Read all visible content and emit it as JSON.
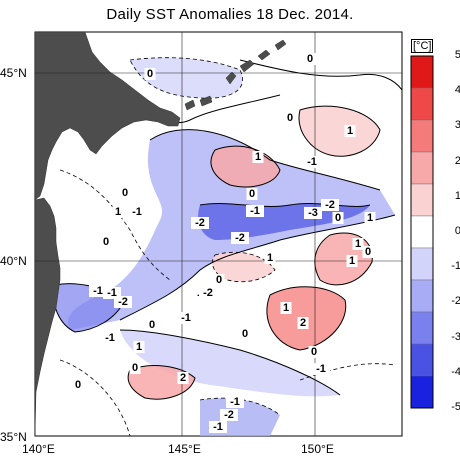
{
  "title": "Daily SST Anomalies 18 Dec. 2014.",
  "map": {
    "lon_ticks": [
      "140°E",
      "145°E",
      "150°E"
    ],
    "lat_ticks": [
      "45°N",
      "40°N",
      "35°N"
    ],
    "contour_labels": [
      "0",
      "0",
      "0",
      "1",
      "1",
      "-1",
      "0",
      "1",
      "-2",
      "-1",
      "0",
      "0",
      "-1",
      "-3",
      "-2",
      "0",
      "1",
      "-2",
      "-2",
      "-1",
      "0",
      "1",
      "1",
      "0",
      "2",
      "0",
      "-1",
      "-2",
      "-1",
      "-2",
      "0",
      "1",
      "2",
      "-1",
      "0",
      "-1",
      "1",
      "0",
      "1",
      "0",
      "-1",
      "-2",
      "-1"
    ],
    "colors": {
      "land": "#4d4d4d",
      "ocean_neutral": "#ffffff",
      "grid": "#222222"
    }
  },
  "colorbar": {
    "unit": "[°C]",
    "tick_labels": [
      "5",
      "4",
      "3",
      "2",
      "1",
      "0",
      "-1",
      "-2",
      "-3",
      "-4",
      "-5"
    ],
    "colors": [
      "#e01818",
      "#ef4848",
      "#f57a7a",
      "#f8a8a8",
      "#fbd2d2",
      "#ffffff",
      "#d2d4fa",
      "#a8acf4",
      "#7a80ee",
      "#4a52e4",
      "#1a22e0"
    ]
  }
}
